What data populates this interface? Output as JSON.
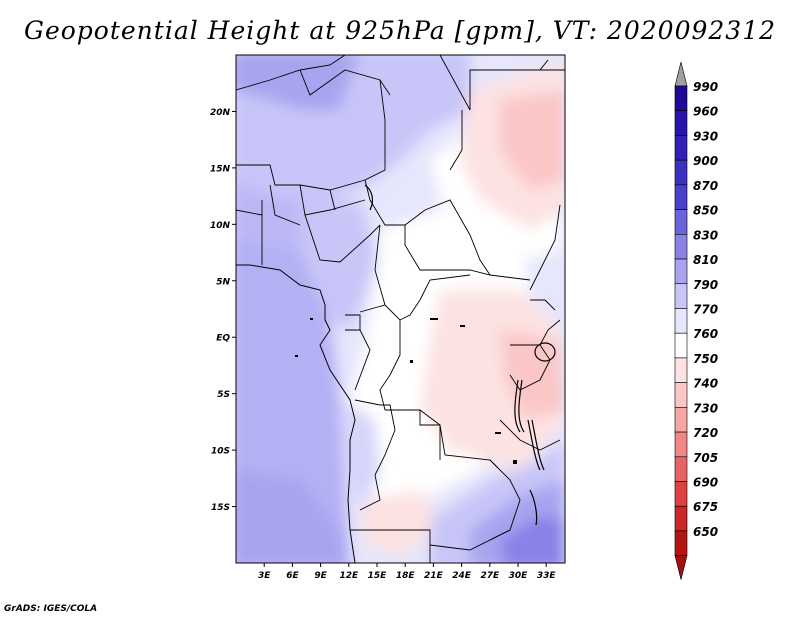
{
  "title": "Geopotential Height at 925hPa [gpm], VT: 2020092312",
  "credit": "GrADS: IGES/COLA",
  "map": {
    "lon_range": [
      0,
      35
    ],
    "lat_range": [
      -20,
      25
    ],
    "lat_ticks": [
      "20N",
      "15N",
      "10N",
      "5N",
      "EQ",
      "5S",
      "10S",
      "15S"
    ],
    "lat_values": [
      20,
      15,
      10,
      5,
      0,
      -5,
      -10,
      -15
    ],
    "lon_ticks": [
      "3E",
      "6E",
      "9E",
      "12E",
      "15E",
      "18E",
      "21E",
      "24E",
      "27E",
      "30E",
      "33E"
    ],
    "lon_values": [
      3,
      6,
      9,
      12,
      15,
      18,
      21,
      24,
      27,
      30,
      33
    ]
  },
  "colorbar": {
    "top_arrow_color": "#a0a0a0",
    "bottom_arrow_color": "#a01010",
    "levels": [
      "990",
      "960",
      "930",
      "900",
      "870",
      "850",
      "830",
      "810",
      "790",
      "770",
      "760",
      "750",
      "740",
      "730",
      "720",
      "705",
      "690",
      "675",
      "650"
    ],
    "colors": [
      "#1e0a96",
      "#2814a8",
      "#3220b4",
      "#3c30c0",
      "#4a40cc",
      "#6a64dc",
      "#8a82e6",
      "#a8a4f0",
      "#c8c6f8",
      "#e6e6fc",
      "#ffffff",
      "#fde2e2",
      "#fbc6c6",
      "#f7a6a6",
      "#f08686",
      "#e86464",
      "#dc4040",
      "#cc2828",
      "#b41414"
    ]
  }
}
